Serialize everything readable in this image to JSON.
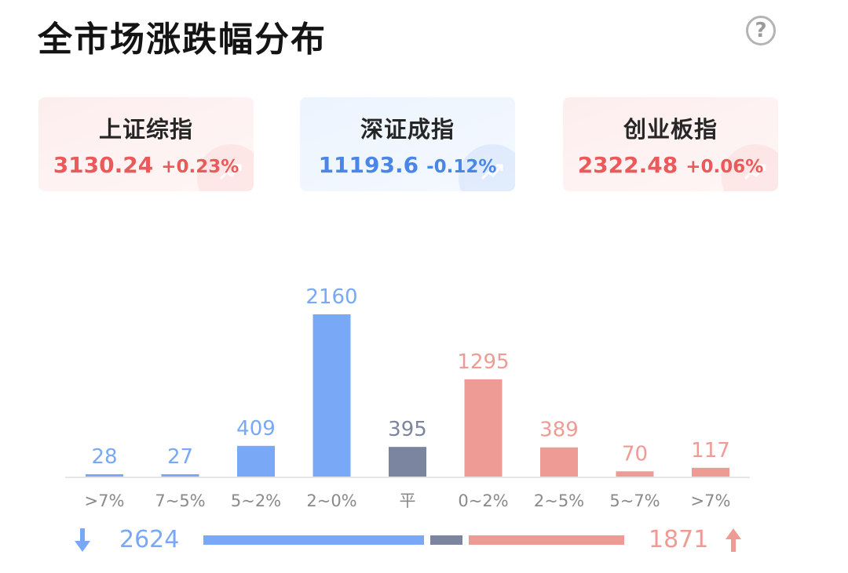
{
  "title": "全市场涨跌幅分布",
  "help_symbol": "?",
  "indices": [
    {
      "name": "上证综指",
      "price": "3130.24",
      "change": "+0.23%",
      "trend": "up"
    },
    {
      "name": "深证成指",
      "price": "11193.6",
      "change": "-0.12%",
      "trend": "down"
    },
    {
      "name": "创业板指",
      "price": "2322.48",
      "change": "+0.06%",
      "trend": "up"
    }
  ],
  "chart_data": {
    "type": "bar",
    "categories": [
      ">7%",
      "7~5%",
      "5~2%",
      "2~0%",
      "平",
      "0~2%",
      "2~5%",
      "5~7%",
      ">7%"
    ],
    "values": [
      28,
      27,
      409,
      2160,
      395,
      1295,
      389,
      70,
      117
    ],
    "bar_groups": [
      "down",
      "down",
      "down",
      "down",
      "flat",
      "up",
      "up",
      "up",
      "up"
    ],
    "ylim": [
      0,
      2160
    ],
    "colors": {
      "down": "#79a8f7",
      "flat": "#7b859f",
      "up": "#ef9b95",
      "axis": "#e6e6e6",
      "tick": "#8a8a8a"
    }
  },
  "summary": {
    "down_count": "2624",
    "up_count": "1871",
    "down_color": "#79a8f7",
    "flat_color": "#7b859f",
    "up_color": "#ef9b95",
    "down_share": 0.54,
    "flat_share": 0.08,
    "up_share": 0.38
  }
}
